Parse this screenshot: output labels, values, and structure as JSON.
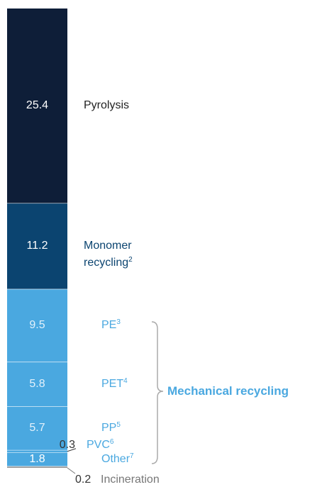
{
  "chart_data": {
    "type": "stacked_bar",
    "annotation": "Mechanical recycling",
    "series": [
      {
        "name": "Pyrolysis",
        "values": [
          25.4
        ],
        "color": "#0e1e38"
      },
      {
        "name": "Monomer recycling",
        "footnote": "2",
        "values": [
          11.2
        ],
        "color": "#0b4470"
      },
      {
        "name": "PE",
        "footnote": "3",
        "values": [
          9.5
        ],
        "color": "#4aa8e0"
      },
      {
        "name": "PET",
        "footnote": "4",
        "values": [
          5.8
        ],
        "color": "#4aa8e0"
      },
      {
        "name": "PP",
        "footnote": "5",
        "values": [
          5.7
        ],
        "color": "#4aa8e0"
      },
      {
        "name": "PVC",
        "footnote": "6",
        "values": [
          0.3
        ],
        "color": "#4aa8e0"
      },
      {
        "name": "Other",
        "footnote": "7",
        "values": [
          1.8
        ],
        "color": "#4aa8e0"
      },
      {
        "name": "Incineration",
        "values": [
          0.2
        ],
        "color": "#9a9a9a"
      }
    ]
  }
}
